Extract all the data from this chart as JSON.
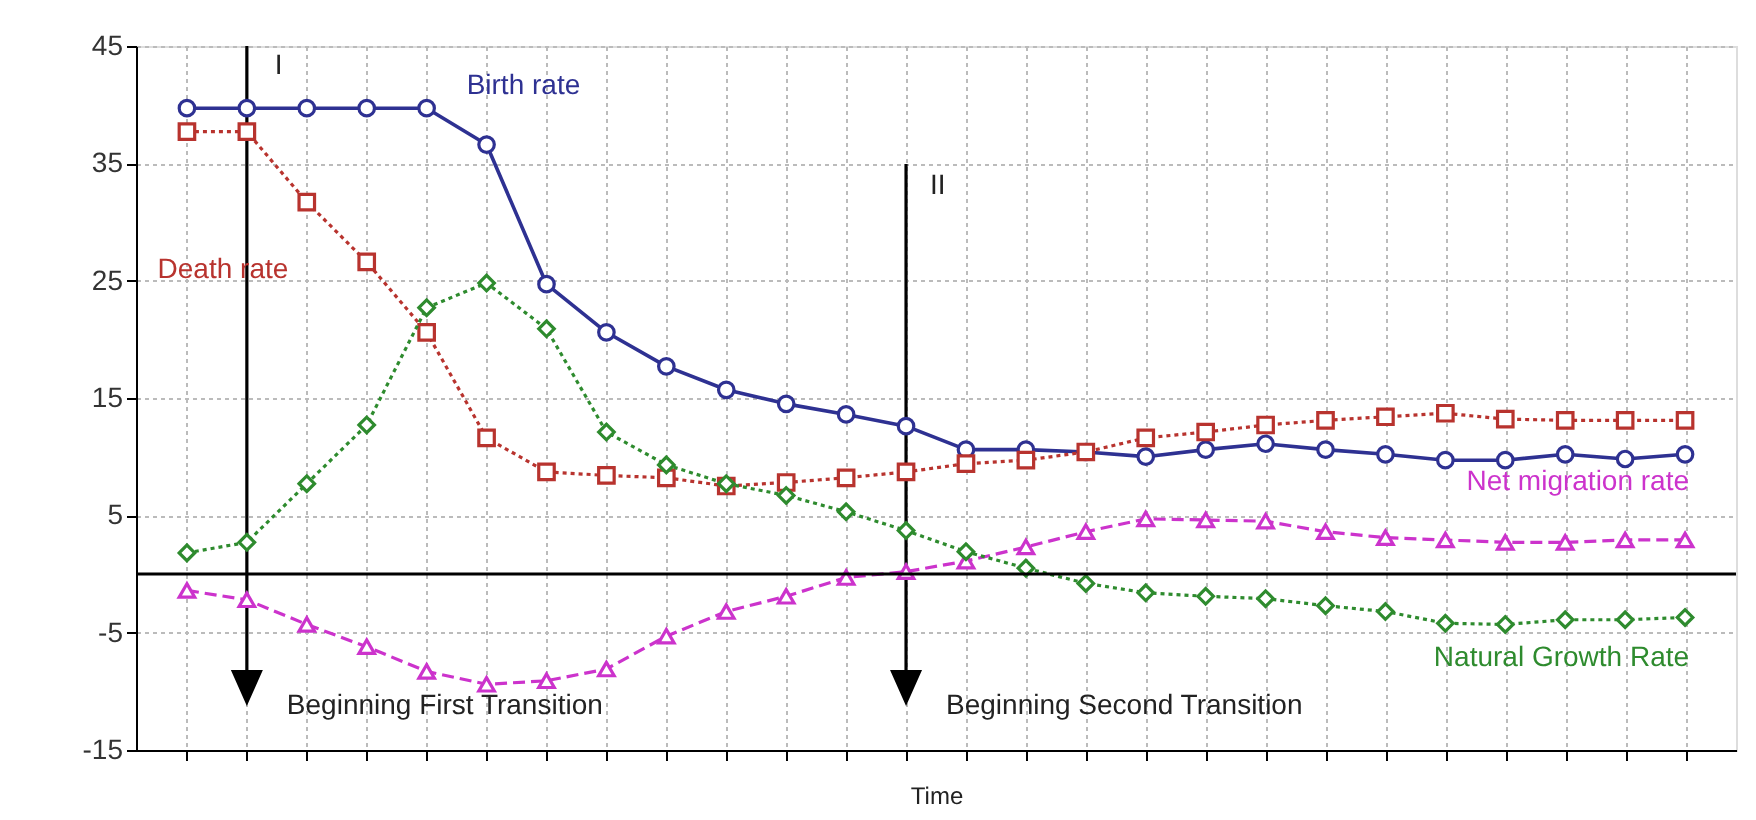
{
  "chart_data": {
    "type": "line",
    "xlabel": "Time",
    "categories": [
      null,
      null,
      null,
      null,
      null,
      null,
      null,
      null,
      null,
      null,
      null,
      null,
      null,
      null,
      null,
      null,
      null,
      null,
      null,
      null,
      null,
      null,
      null,
      null,
      null,
      null
    ],
    "ylim": [
      -15,
      45
    ],
    "yticks": [
      -15,
      -5,
      5,
      15,
      25,
      35,
      45
    ],
    "tick_labels": "y",
    "grid": true,
    "series": [
      {
        "name": "Birth rate",
        "color": "#2e3192",
        "marker": "circle",
        "line_style": "solid",
        "values": [
          39.7,
          39.7,
          39.7,
          39.7,
          39.7,
          36.6,
          24.7,
          20.6,
          17.7,
          15.7,
          14.5,
          13.6,
          12.6,
          10.6,
          10.6,
          10.4,
          10.0,
          10.6,
          11.1,
          10.6,
          10.2,
          9.7,
          9.7,
          10.2,
          9.8,
          10.2
        ]
      },
      {
        "name": "Death rate",
        "color": "#b8332e",
        "marker": "square",
        "line_style": "dotted",
        "values": [
          37.7,
          37.7,
          31.7,
          26.6,
          20.6,
          11.6,
          8.7,
          8.4,
          8.2,
          7.5,
          7.8,
          8.2,
          8.7,
          9.4,
          9.7,
          10.4,
          11.6,
          12.1,
          12.7,
          13.1,
          13.4,
          13.7,
          13.2,
          13.1,
          13.1,
          13.1
        ]
      },
      {
        "name": "Net migration rate",
        "color": "#cc33cc",
        "marker": "triangle",
        "line_style": "dashed",
        "values": [
          -1.4,
          -2.2,
          -4.3,
          -6.2,
          -8.3,
          -9.4,
          -9.1,
          -8.1,
          -5.3,
          -3.2,
          -1.9,
          -0.3,
          0.2,
          1.1,
          2.3,
          3.6,
          4.7,
          4.6,
          4.5,
          3.6,
          3.1,
          2.9,
          2.7,
          2.7,
          2.9,
          2.9
        ]
      },
      {
        "name": "Natural Growth Rate",
        "color": "#2e8b2e",
        "marker": "diamond",
        "line_style": "dotted",
        "values": [
          1.8,
          2.7,
          7.7,
          12.7,
          22.7,
          24.8,
          20.9,
          12.1,
          9.3,
          7.7,
          6.7,
          5.3,
          3.7,
          1.9,
          0.5,
          -0.8,
          -1.6,
          -1.9,
          -2.1,
          -2.7,
          -3.2,
          -4.2,
          -4.3,
          -3.9,
          -3.9,
          -3.7
        ]
      }
    ],
    "ref_lines": [
      {
        "axis": "y",
        "value": 0,
        "color": "#000000"
      }
    ],
    "annotations": [
      "I",
      "Beginning First Transition",
      "II",
      "Beginning Second Transition"
    ]
  }
}
